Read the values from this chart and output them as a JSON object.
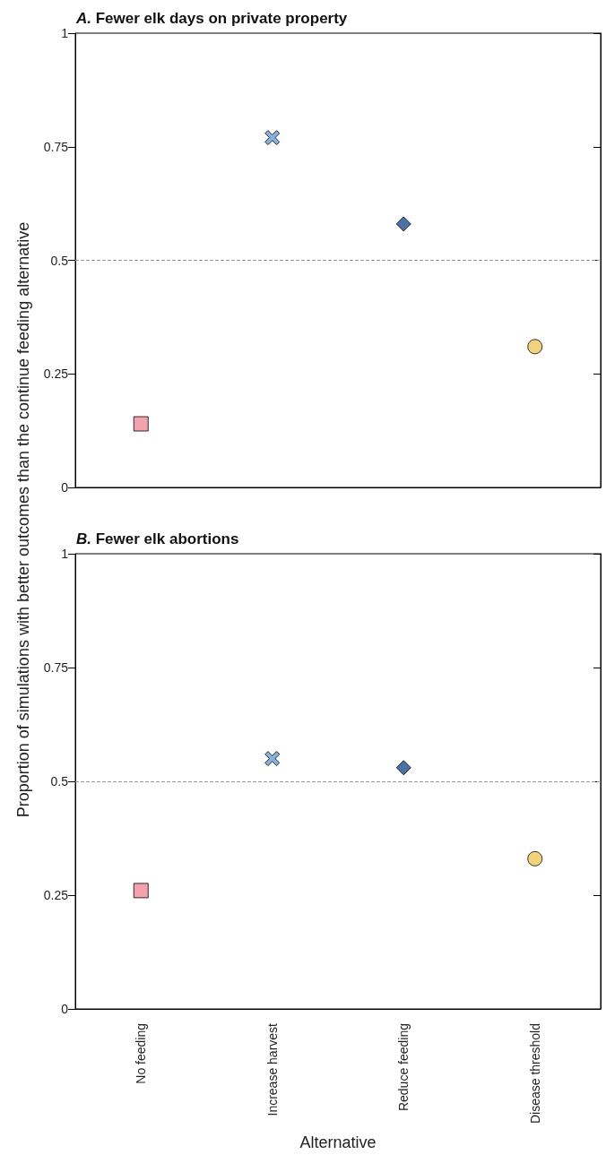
{
  "chart_data": [
    {
      "type": "scatter",
      "title": "A. Fewer elk days on private property",
      "ylabel": "Proportion of simulations with better outcomes than the continue feeding alternative",
      "categories": [
        "No feeding",
        "Increase harvest",
        "Reduce feeding",
        "Disease threshold"
      ],
      "tick_labels": "y",
      "ylim": [
        0,
        1
      ],
      "yticks": [
        0,
        0.25,
        0.5,
        0.75,
        1
      ],
      "grid": false,
      "series": [
        {
          "x": [
            "No feeding"
          ],
          "values": [
            0.14
          ],
          "color": "#f08c9a",
          "marker": "square"
        },
        {
          "x": [
            "Increase harvest"
          ],
          "values": [
            0.77
          ],
          "color": "#6a9fd4",
          "marker": "cross"
        },
        {
          "x": [
            "Reduce feeding"
          ],
          "values": [
            0.58
          ],
          "color": "#1f4e8c",
          "marker": "diamond"
        },
        {
          "x": [
            "Disease threshold"
          ],
          "values": [
            0.31
          ],
          "color": "#f0c75e",
          "marker": "circle"
        }
      ],
      "ref_lines": [
        {
          "axis": "y",
          "value": 0.5,
          "color": "#999999",
          "line_style": "dashed"
        }
      ]
    },
    {
      "type": "scatter",
      "title": "B. Fewer elk abortions",
      "xlabel": "Alternative",
      "categories": [
        "No feeding",
        "Increase harvest",
        "Reduce feeding",
        "Disease threshold"
      ],
      "ylim": [
        0,
        1
      ],
      "yticks": [
        0,
        0.25,
        0.5,
        0.75,
        1
      ],
      "grid": false,
      "series": [
        {
          "x": [
            "No feeding"
          ],
          "values": [
            0.26
          ],
          "color": "#f08c9a",
          "marker": "square"
        },
        {
          "x": [
            "Increase harvest"
          ],
          "values": [
            0.55
          ],
          "color": "#6a9fd4",
          "marker": "cross"
        },
        {
          "x": [
            "Reduce feeding"
          ],
          "values": [
            0.53
          ],
          "color": "#1f4e8c",
          "marker": "diamond"
        },
        {
          "x": [
            "Disease threshold"
          ],
          "values": [
            0.33
          ],
          "color": "#f0c75e",
          "marker": "circle"
        }
      ],
      "ref_lines": [
        {
          "axis": "y",
          "value": 0.5,
          "color": "#999999",
          "line_style": "dashed"
        }
      ]
    }
  ]
}
